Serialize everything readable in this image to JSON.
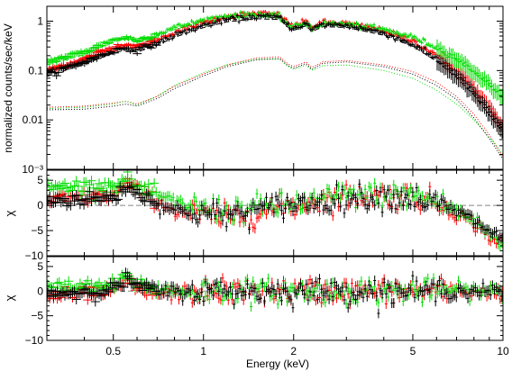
{
  "chart_data": [
    {
      "type": "scatter",
      "panel": "spectrum",
      "xlabel": "Energy (keV)",
      "ylabel": "normalized counts/sec/keV",
      "xscale": "log",
      "yscale": "log",
      "xlim": [
        0.3,
        10
      ],
      "ylim": [
        0.001,
        2
      ],
      "xticks": [
        0.5,
        1,
        2,
        5,
        10
      ],
      "xtick_labels": [
        "0.5",
        "1",
        "2",
        "5",
        "10"
      ],
      "yticks": [
        1,
        0.1,
        0.01,
        0.001
      ],
      "ytick_labels": [
        "1",
        "0.1",
        "0.01",
        "10⁻³"
      ],
      "series": [
        {
          "color": "#ff0000",
          "x": [
            0.3,
            0.4,
            0.5,
            0.55,
            0.6,
            0.7,
            0.8,
            1.0,
            1.2,
            1.5,
            1.8,
            1.9,
            2.0,
            2.2,
            2.3,
            2.5,
            3.0,
            4.0,
            5.0,
            6.0,
            7.0,
            8.0,
            9.0,
            10.0
          ],
          "data": [
            0.1,
            0.17,
            0.3,
            0.34,
            0.3,
            0.42,
            0.6,
            0.95,
            1.25,
            1.45,
            1.35,
            0.95,
            0.8,
            1.0,
            0.75,
            0.95,
            0.9,
            0.65,
            0.4,
            0.21,
            0.1,
            0.045,
            0.018,
            0.007
          ],
          "model": [
            0.09,
            0.155,
            0.28,
            0.32,
            0.28,
            0.39,
            0.56,
            0.89,
            1.17,
            1.36,
            1.27,
            0.89,
            0.75,
            0.94,
            0.7,
            0.89,
            0.85,
            0.61,
            0.37,
            0.19,
            0.09,
            0.04,
            0.016,
            0.0065
          ],
          "component": [
            0.018,
            0.019,
            0.022,
            0.024,
            0.021,
            0.03,
            0.048,
            0.085,
            0.13,
            0.18,
            0.19,
            0.14,
            0.12,
            0.15,
            0.115,
            0.15,
            0.16,
            0.13,
            0.095,
            0.058,
            0.03,
            0.013,
            0.005,
            0.0018
          ]
        },
        {
          "color": "#00dd00",
          "x": [
            0.3,
            0.4,
            0.5,
            0.55,
            0.6,
            0.7,
            0.8,
            1.0,
            1.2,
            1.5,
            1.8,
            1.9,
            2.0,
            2.2,
            2.3,
            2.5,
            3.0,
            4.0,
            5.0,
            6.0,
            7.0,
            8.0,
            9.0,
            10.0
          ],
          "data": [
            0.15,
            0.24,
            0.42,
            0.47,
            0.41,
            0.55,
            0.75,
            1.05,
            1.3,
            1.4,
            1.25,
            0.9,
            0.75,
            0.95,
            0.72,
            0.9,
            0.88,
            0.68,
            0.48,
            0.3,
            0.18,
            0.1,
            0.055,
            0.03
          ],
          "model": [
            0.13,
            0.21,
            0.38,
            0.43,
            0.37,
            0.5,
            0.68,
            0.96,
            1.19,
            1.28,
            1.15,
            0.83,
            0.69,
            0.87,
            0.66,
            0.83,
            0.81,
            0.62,
            0.44,
            0.27,
            0.16,
            0.09,
            0.05,
            0.027
          ],
          "component": [
            0.017,
            0.018,
            0.021,
            0.024,
            0.02,
            0.03,
            0.05,
            0.09,
            0.13,
            0.17,
            0.17,
            0.125,
            0.105,
            0.13,
            0.1,
            0.125,
            0.13,
            0.1,
            0.07,
            0.04,
            0.021,
            0.01,
            0.0045,
            0.002
          ]
        },
        {
          "color": "#000000",
          "x": [
            0.3,
            0.4,
            0.5,
            0.55,
            0.6,
            0.7,
            0.8,
            1.0,
            1.2,
            1.5,
            1.8,
            1.9,
            2.0,
            2.2,
            2.3,
            2.5,
            3.0,
            4.0,
            5.0,
            6.0,
            7.0,
            8.0,
            9.0,
            10.0
          ],
          "data": [
            0.085,
            0.15,
            0.25,
            0.29,
            0.26,
            0.36,
            0.52,
            0.82,
            1.08,
            1.25,
            1.2,
            0.85,
            0.72,
            0.9,
            0.68,
            0.86,
            0.83,
            0.58,
            0.34,
            0.17,
            0.08,
            0.035,
            0.014,
            0.006
          ],
          "model": [
            0.076,
            0.135,
            0.225,
            0.26,
            0.235,
            0.325,
            0.47,
            0.74,
            0.97,
            1.12,
            1.08,
            0.77,
            0.65,
            0.81,
            0.61,
            0.77,
            0.75,
            0.52,
            0.31,
            0.155,
            0.072,
            0.032,
            0.0125,
            0.0055
          ],
          "component": [
            0.016,
            0.0165,
            0.019,
            0.021,
            0.019,
            0.027,
            0.043,
            0.078,
            0.12,
            0.165,
            0.175,
            0.13,
            0.11,
            0.14,
            0.105,
            0.14,
            0.15,
            0.12,
            0.085,
            0.05,
            0.026,
            0.011,
            0.0042,
            0.0016
          ]
        }
      ]
    },
    {
      "type": "scatter",
      "panel": "residuals-upper",
      "ylabel": "χ",
      "xscale": "log",
      "xlim": [
        0.3,
        10
      ],
      "ylim": [
        -10,
        7
      ],
      "yticks": [
        5,
        0,
        -5,
        -10
      ],
      "ytick_labels": [
        "5",
        "0",
        "−5",
        "−10"
      ],
      "zero_line": 0,
      "x": [
        0.3,
        0.4,
        0.5,
        0.56,
        0.6,
        0.7,
        0.8,
        1.0,
        1.2,
        1.5,
        1.8,
        2.0,
        2.5,
        3.0,
        4.0,
        5.0,
        6.0,
        7.0,
        8.0,
        9.0,
        10.0
      ],
      "series": [
        {
          "color": "#ff0000",
          "values": [
            1,
            1.5,
            2,
            4.5,
            3,
            1,
            -1,
            -2,
            -2.5,
            -1.5,
            -0.5,
            0,
            1,
            1.8,
            2,
            1.8,
            0.5,
            -1.5,
            -3.5,
            -6,
            -8
          ]
        },
        {
          "color": "#00dd00",
          "values": [
            3.5,
            3.8,
            4,
            5,
            3.5,
            2,
            0.5,
            -0.5,
            -1,
            -0.5,
            0,
            0.3,
            1.2,
            2,
            2.2,
            2,
            0.8,
            -1,
            -3,
            -5.5,
            -8
          ]
        },
        {
          "color": "#000000",
          "values": [
            1,
            1.2,
            1.5,
            4,
            2.5,
            0.5,
            -1,
            -1.5,
            -2,
            -1,
            0,
            0.2,
            0.8,
            1.5,
            1.8,
            1.5,
            0.3,
            -1.2,
            -3,
            -5,
            -7
          ]
        }
      ]
    },
    {
      "type": "scatter",
      "panel": "residuals-lower",
      "ylabel": "χ",
      "xlabel": "Energy (keV)",
      "xscale": "log",
      "xlim": [
        0.3,
        10
      ],
      "ylim": [
        -10,
        7
      ],
      "xticks": [
        0.5,
        1,
        2,
        5,
        10
      ],
      "xtick_labels": [
        "0.5",
        "1",
        "2",
        "5",
        "10"
      ],
      "yticks": [
        5,
        0,
        -5,
        -10
      ],
      "ytick_labels": [
        "5",
        "0",
        "−5",
        "−10"
      ],
      "zero_line": 0,
      "x": [
        0.3,
        0.4,
        0.5,
        0.56,
        0.6,
        0.7,
        0.8,
        1.0,
        1.2,
        1.5,
        1.8,
        2.0,
        2.5,
        3.0,
        4.0,
        5.0,
        6.0,
        7.0,
        8.0,
        9.0,
        10.0
      ],
      "series": [
        {
          "color": "#ff0000",
          "values": [
            -1,
            -0.5,
            0,
            2,
            0.5,
            -0.5,
            -0.5,
            0,
            0,
            0,
            0,
            0,
            0,
            0,
            0,
            0,
            0,
            0,
            0,
            0,
            0
          ]
        },
        {
          "color": "#00dd00",
          "values": [
            0.5,
            0.8,
            1,
            3,
            1.5,
            0.5,
            0,
            0,
            0,
            0,
            0,
            0,
            0,
            0,
            0,
            0,
            0,
            0.3,
            0,
            0,
            0
          ]
        },
        {
          "color": "#000000",
          "values": [
            -0.5,
            -0.2,
            0.5,
            2.5,
            1,
            0,
            -0.2,
            0,
            0,
            0,
            0,
            0,
            0,
            0,
            0,
            0,
            0,
            0,
            0,
            0,
            0
          ]
        }
      ]
    }
  ]
}
